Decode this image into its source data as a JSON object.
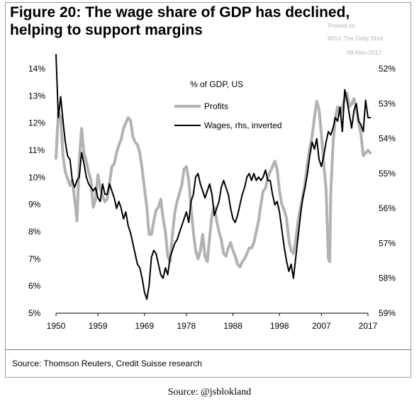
{
  "header": {
    "title_line1": "Figure 20: The wage share of GDP has declined,",
    "title_line2": "helping to support margins",
    "watermark_posted": "Posted on",
    "watermark_source": "WSJ: The Daily Shot",
    "watermark_date": "08-Nov-2017"
  },
  "footer": {
    "source": "Source: Thomson Reuters, Credit Suisse research",
    "caption": "Source: @jsblokland"
  },
  "chart_data": {
    "type": "line",
    "annotation": "% of GDP, US",
    "grid": false,
    "legend_position": "top-center",
    "x_range": [
      1950,
      2017
    ],
    "x_tick_labels": [
      "1950",
      "1959",
      "1969",
      "1978",
      "1988",
      "1998",
      "2007",
      "2017"
    ],
    "x_tick_values": [
      1950,
      1959,
      1969,
      1978,
      1988,
      1998,
      2007,
      2017
    ],
    "y_left": {
      "range": [
        5,
        14
      ],
      "tick_labels": [
        "5%",
        "6%",
        "7%",
        "8%",
        "9%",
        "10%",
        "11%",
        "12%",
        "13%",
        "14%"
      ],
      "tick_values": [
        5,
        6,
        7,
        8,
        9,
        10,
        11,
        12,
        13,
        14
      ]
    },
    "y_right": {
      "range": [
        52,
        59
      ],
      "inverted": true,
      "tick_labels": [
        "52%",
        "53%",
        "54%",
        "55%",
        "56%",
        "57%",
        "58%",
        "59%"
      ],
      "tick_values": [
        52,
        53,
        54,
        55,
        56,
        57,
        58,
        59
      ]
    },
    "series": [
      {
        "name": "Profits",
        "axis": "left",
        "color": "#b2b2b2",
        "points": [
          [
            1950.0,
            10.7
          ],
          [
            1950.5,
            12.4
          ],
          [
            1951.0,
            12.2
          ],
          [
            1951.5,
            10.8
          ],
          [
            1952.0,
            10.2
          ],
          [
            1953.0,
            9.7
          ],
          [
            1953.5,
            9.9
          ],
          [
            1954.0,
            9.2
          ],
          [
            1954.5,
            8.4
          ],
          [
            1955.0,
            10.6
          ],
          [
            1955.5,
            11.8
          ],
          [
            1956.0,
            10.9
          ],
          [
            1956.5,
            10.6
          ],
          [
            1957.0,
            10.2
          ],
          [
            1957.5,
            9.9
          ],
          [
            1958.0,
            8.9
          ],
          [
            1958.5,
            9.2
          ],
          [
            1959.0,
            10.1
          ],
          [
            1959.5,
            9.6
          ],
          [
            1960.0,
            9.3
          ],
          [
            1960.5,
            9.1
          ],
          [
            1961.0,
            9.2
          ],
          [
            1961.5,
            9.8
          ],
          [
            1962.0,
            10.4
          ],
          [
            1962.5,
            10.5
          ],
          [
            1963.0,
            10.9
          ],
          [
            1963.5,
            11.2
          ],
          [
            1964.0,
            11.4
          ],
          [
            1964.5,
            11.8
          ],
          [
            1965.0,
            12.0
          ],
          [
            1965.5,
            12.2
          ],
          [
            1966.0,
            12.1
          ],
          [
            1966.5,
            11.5
          ],
          [
            1967.0,
            11.3
          ],
          [
            1967.5,
            11.2
          ],
          [
            1968.0,
            10.9
          ],
          [
            1968.5,
            10.3
          ],
          [
            1969.0,
            9.6
          ],
          [
            1969.5,
            8.9
          ],
          [
            1970.0,
            7.9
          ],
          [
            1970.5,
            7.9
          ],
          [
            1971.0,
            8.4
          ],
          [
            1971.5,
            8.8
          ],
          [
            1972.0,
            8.9
          ],
          [
            1972.5,
            9.2
          ],
          [
            1973.0,
            8.5
          ],
          [
            1973.5,
            8.0
          ],
          [
            1974.0,
            7.1
          ],
          [
            1974.5,
            6.9
          ],
          [
            1975.0,
            7.9
          ],
          [
            1975.5,
            8.7
          ],
          [
            1976.0,
            9.1
          ],
          [
            1976.5,
            9.4
          ],
          [
            1977.0,
            9.7
          ],
          [
            1977.5,
            10.3
          ],
          [
            1978.0,
            10.4
          ],
          [
            1978.5,
            9.9
          ],
          [
            1979.0,
            8.9
          ],
          [
            1979.5,
            8.0
          ],
          [
            1980.0,
            7.3
          ],
          [
            1980.5,
            7.0
          ],
          [
            1981.0,
            7.3
          ],
          [
            1981.5,
            7.9
          ],
          [
            1982.0,
            7.1
          ],
          [
            1982.5,
            6.9
          ],
          [
            1983.0,
            7.8
          ],
          [
            1983.5,
            8.6
          ],
          [
            1984.0,
            8.9
          ],
          [
            1984.5,
            8.4
          ],
          [
            1985.0,
            8.0
          ],
          [
            1985.5,
            7.7
          ],
          [
            1986.0,
            7.2
          ],
          [
            1986.5,
            7.1
          ],
          [
            1987.0,
            7.4
          ],
          [
            1987.5,
            7.6
          ],
          [
            1988.0,
            7.3
          ],
          [
            1988.5,
            7.1
          ],
          [
            1989.0,
            6.8
          ],
          [
            1989.5,
            6.7
          ],
          [
            1990.0,
            6.9
          ],
          [
            1990.5,
            7.0
          ],
          [
            1991.0,
            7.2
          ],
          [
            1991.5,
            7.4
          ],
          [
            1992.0,
            7.4
          ],
          [
            1992.5,
            7.6
          ],
          [
            1993.0,
            8.0
          ],
          [
            1993.5,
            8.4
          ],
          [
            1994.0,
            9.0
          ],
          [
            1994.5,
            9.5
          ],
          [
            1995.0,
            9.6
          ],
          [
            1995.5,
            10.0
          ],
          [
            1996.0,
            10.2
          ],
          [
            1996.5,
            10.4
          ],
          [
            1997.0,
            10.6
          ],
          [
            1997.5,
            10.3
          ],
          [
            1998.0,
            9.5
          ],
          [
            1998.5,
            9.0
          ],
          [
            1999.0,
            8.8
          ],
          [
            1999.5,
            8.5
          ],
          [
            2000.0,
            7.7
          ],
          [
            2000.5,
            7.3
          ],
          [
            2001.0,
            7.2
          ],
          [
            2001.5,
            7.7
          ],
          [
            2002.0,
            8.4
          ],
          [
            2002.5,
            8.9
          ],
          [
            2003.0,
            9.3
          ],
          [
            2003.5,
            9.8
          ],
          [
            2004.0,
            10.5
          ],
          [
            2004.5,
            11.1
          ],
          [
            2005.0,
            11.5
          ],
          [
            2005.5,
            12.2
          ],
          [
            2006.0,
            12.8
          ],
          [
            2006.5,
            12.5
          ],
          [
            2007.0,
            11.6
          ],
          [
            2007.5,
            10.5
          ],
          [
            2008.0,
            9.6
          ],
          [
            2008.5,
            7.0
          ],
          [
            2008.8,
            6.9
          ],
          [
            2009.0,
            9.4
          ],
          [
            2009.5,
            11.2
          ],
          [
            2010.0,
            12.2
          ],
          [
            2010.5,
            12.6
          ],
          [
            2011.0,
            12.3
          ],
          [
            2011.5,
            12.6
          ],
          [
            2012.0,
            12.9
          ],
          [
            2012.5,
            13.1
          ],
          [
            2013.0,
            12.6
          ],
          [
            2013.5,
            12.7
          ],
          [
            2014.0,
            12.9
          ],
          [
            2014.5,
            12.5
          ],
          [
            2015.0,
            12.0
          ],
          [
            2015.5,
            11.6
          ],
          [
            2016.0,
            10.8
          ],
          [
            2016.5,
            10.9
          ],
          [
            2017.0,
            11.0
          ],
          [
            2017.5,
            10.9
          ]
        ]
      },
      {
        "name": "Wages, rhs, inverted",
        "axis": "right",
        "color": "#000000",
        "points": [
          [
            1950.0,
            51.6
          ],
          [
            1950.5,
            53.4
          ],
          [
            1951.0,
            52.8
          ],
          [
            1951.5,
            53.5
          ],
          [
            1952.0,
            54.1
          ],
          [
            1952.5,
            54.5
          ],
          [
            1953.0,
            54.6
          ],
          [
            1953.5,
            55.2
          ],
          [
            1954.0,
            55.4
          ],
          [
            1954.5,
            55.2
          ],
          [
            1955.0,
            55.1
          ],
          [
            1955.5,
            54.4
          ],
          [
            1956.0,
            54.7
          ],
          [
            1956.5,
            55.1
          ],
          [
            1957.0,
            55.3
          ],
          [
            1957.5,
            55.4
          ],
          [
            1958.0,
            55.5
          ],
          [
            1958.5,
            55.4
          ],
          [
            1959.0,
            55.7
          ],
          [
            1959.5,
            55.8
          ],
          [
            1960.0,
            55.3
          ],
          [
            1960.5,
            55.6
          ],
          [
            1961.0,
            55.6
          ],
          [
            1961.5,
            55.3
          ],
          [
            1962.0,
            55.5
          ],
          [
            1962.5,
            55.7
          ],
          [
            1963.0,
            56.0
          ],
          [
            1963.5,
            55.8
          ],
          [
            1964.0,
            56.0
          ],
          [
            1964.5,
            56.3
          ],
          [
            1965.0,
            56.1
          ],
          [
            1965.5,
            56.5
          ],
          [
            1966.0,
            56.7
          ],
          [
            1966.5,
            57.0
          ],
          [
            1967.0,
            57.3
          ],
          [
            1967.5,
            57.6
          ],
          [
            1968.0,
            57.7
          ],
          [
            1968.5,
            58.0
          ],
          [
            1969.0,
            58.4
          ],
          [
            1969.5,
            58.6
          ],
          [
            1970.0,
            58.2
          ],
          [
            1970.5,
            57.4
          ],
          [
            1971.0,
            57.2
          ],
          [
            1971.5,
            57.3
          ],
          [
            1972.0,
            57.6
          ],
          [
            1972.5,
            57.9
          ],
          [
            1973.0,
            58.0
          ],
          [
            1973.5,
            57.7
          ],
          [
            1974.0,
            57.9
          ],
          [
            1974.5,
            57.4
          ],
          [
            1975.0,
            57.2
          ],
          [
            1975.5,
            57.0
          ],
          [
            1976.0,
            56.9
          ],
          [
            1976.5,
            56.7
          ],
          [
            1977.0,
            56.5
          ],
          [
            1977.5,
            56.3
          ],
          [
            1978.0,
            56.1
          ],
          [
            1978.5,
            56.4
          ],
          [
            1979.0,
            55.8
          ],
          [
            1979.5,
            55.6
          ],
          [
            1980.0,
            55.1
          ],
          [
            1980.5,
            55.0
          ],
          [
            1981.0,
            55.3
          ],
          [
            1981.5,
            55.5
          ],
          [
            1982.0,
            55.7
          ],
          [
            1982.5,
            55.5
          ],
          [
            1983.0,
            55.3
          ],
          [
            1983.5,
            55.6
          ],
          [
            1984.0,
            56.2
          ],
          [
            1984.5,
            56.0
          ],
          [
            1985.0,
            55.8
          ],
          [
            1985.5,
            55.4
          ],
          [
            1986.0,
            55.2
          ],
          [
            1986.5,
            55.4
          ],
          [
            1987.0,
            55.6
          ],
          [
            1987.5,
            56.0
          ],
          [
            1988.0,
            56.3
          ],
          [
            1988.5,
            56.4
          ],
          [
            1989.0,
            56.2
          ],
          [
            1989.5,
            55.9
          ],
          [
            1990.0,
            55.6
          ],
          [
            1990.5,
            55.4
          ],
          [
            1991.0,
            55.1
          ],
          [
            1991.5,
            55.0
          ],
          [
            1992.0,
            55.2
          ],
          [
            1992.5,
            55.0
          ],
          [
            1993.0,
            55.2
          ],
          [
            1993.5,
            55.1
          ],
          [
            1994.0,
            55.2
          ],
          [
            1994.5,
            55.1
          ],
          [
            1995.0,
            54.9
          ],
          [
            1995.5,
            55.2
          ],
          [
            1996.0,
            55.2
          ],
          [
            1996.5,
            55.6
          ],
          [
            1997.0,
            55.9
          ],
          [
            1997.5,
            55.8
          ],
          [
            1998.0,
            56.1
          ],
          [
            1998.5,
            56.6
          ],
          [
            1999.0,
            57.1
          ],
          [
            1999.5,
            57.5
          ],
          [
            2000.0,
            57.8
          ],
          [
            2000.5,
            57.6
          ],
          [
            2001.0,
            58.0
          ],
          [
            2001.5,
            57.4
          ],
          [
            2002.0,
            56.8
          ],
          [
            2002.5,
            56.2
          ],
          [
            2003.0,
            55.7
          ],
          [
            2003.5,
            55.4
          ],
          [
            2004.0,
            55.0
          ],
          [
            2004.5,
            54.5
          ],
          [
            2005.0,
            54.1
          ],
          [
            2005.5,
            54.3
          ],
          [
            2006.0,
            54.0
          ],
          [
            2006.5,
            54.6
          ],
          [
            2007.0,
            54.8
          ],
          [
            2007.5,
            54.5
          ],
          [
            2008.0,
            54.1
          ],
          [
            2008.5,
            53.8
          ],
          [
            2009.0,
            53.9
          ],
          [
            2009.5,
            53.7
          ],
          [
            2010.0,
            53.4
          ],
          [
            2010.5,
            53.5
          ],
          [
            2011.0,
            53.1
          ],
          [
            2011.5,
            53.8
          ],
          [
            2012.0,
            52.6
          ],
          [
            2012.5,
            52.9
          ],
          [
            2013.0,
            53.3
          ],
          [
            2013.5,
            53.7
          ],
          [
            2014.0,
            53.2
          ],
          [
            2014.5,
            53.0
          ],
          [
            2015.0,
            53.5
          ],
          [
            2015.5,
            53.6
          ],
          [
            2016.0,
            53.8
          ],
          [
            2016.5,
            52.9
          ],
          [
            2017.0,
            53.4
          ],
          [
            2017.5,
            53.4
          ]
        ]
      }
    ]
  }
}
